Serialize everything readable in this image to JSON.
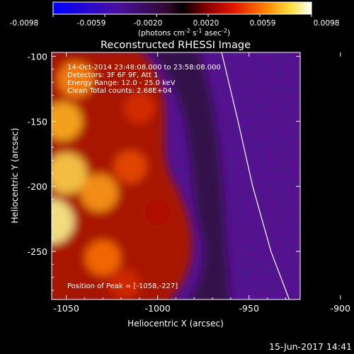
{
  "colorbar": {
    "ticks": [
      "-0.0098",
      "-0.0059",
      "-0.0020",
      "0.0020",
      "0.0059",
      "0.0098"
    ],
    "units": "(photons cm",
    "units_exp1": "-2",
    "units_mid": " s",
    "units_exp2": "-1",
    "units_end": " asec",
    "units_exp3": "-2",
    "units_close": ")"
  },
  "title": "Reconstructed RHESSI Image",
  "annotations": {
    "time": "14-Oct-2014 23:48:08.000 to 23:58:08.000",
    "detectors": "Detectors: 3F 6F 9F, Att 1",
    "energy": "Energy Range: 12.0 - 25.0 keV",
    "clean": "Clean     Total counts: 2.68E+04",
    "peak": "Position of Peak = [-1058,-227]"
  },
  "footer_timestamp": "15-Jun-2017 14:41",
  "colors": {
    "background": "#000000",
    "limb": "#ffffff",
    "bright": "#ffff80",
    "dark": "#4a1a88"
  },
  "chart_data": {
    "type": "heatmap",
    "title": "Reconstructed RHESSI Image",
    "xlabel": "Heliocentric X (arcsec)",
    "ylabel": "Heliocentric Y (arcsec)",
    "xlim": [
      -1058,
      -922
    ],
    "ylim": [
      -287,
      -97
    ],
    "xticks": [
      -1050,
      -1000,
      -950,
      -900
    ],
    "yticks": [
      -100,
      -150,
      -200,
      -250
    ],
    "xtick_labels": [
      "-1050",
      "-1000",
      "-950",
      "-900"
    ],
    "ytick_labels": [
      "-100",
      "-150",
      "-200",
      "-250"
    ],
    "color_scale": {
      "min": -0.0098,
      "max": 0.0098,
      "palette": "blue-purple-red-yellow-white"
    },
    "peak": {
      "x": -1058,
      "y": -227
    },
    "limb_x_at_y": [
      {
        "y": -97,
        "x": -965
      },
      {
        "y": -150,
        "x": -956
      },
      {
        "y": -200,
        "x": -948
      },
      {
        "y": -250,
        "x": -938
      },
      {
        "y": -287,
        "x": -928
      }
    ],
    "emission_blobs": [
      {
        "x": -1058,
        "y": -227,
        "value": 0.0098
      },
      {
        "x": -1050,
        "y": -190,
        "value": 0.0085
      },
      {
        "x": -1052,
        "y": -150,
        "value": 0.0075
      },
      {
        "x": -1045,
        "y": -118,
        "value": 0.0065
      },
      {
        "x": -1032,
        "y": -205,
        "value": 0.007
      },
      {
        "x": -1030,
        "y": -255,
        "value": 0.006
      },
      {
        "x": -1015,
        "y": -185,
        "value": 0.005
      },
      {
        "x": -1010,
        "y": -140,
        "value": 0.0042
      },
      {
        "x": -1018,
        "y": -275,
        "value": 0.004
      },
      {
        "x": -1000,
        "y": -220,
        "value": 0.0025
      }
    ]
  }
}
